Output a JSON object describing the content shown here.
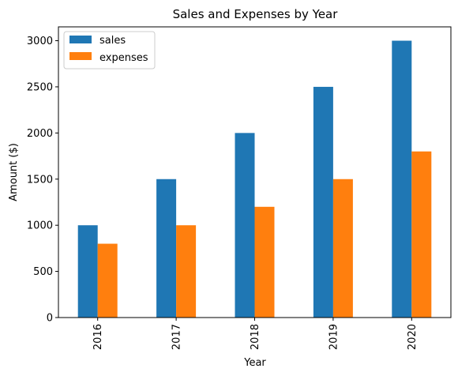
{
  "chart_data": {
    "type": "bar",
    "title": "Sales and Expenses by Year",
    "xlabel": "Year",
    "ylabel": "Amount ($)",
    "categories": [
      "2016",
      "2017",
      "2018",
      "2019",
      "2020"
    ],
    "series": [
      {
        "name": "sales",
        "color": "#1f77b4",
        "values": [
          1000,
          1500,
          2000,
          2500,
          3000
        ]
      },
      {
        "name": "expenses",
        "color": "#ff7f0e",
        "values": [
          800,
          1000,
          1200,
          1500,
          1800
        ]
      }
    ],
    "ylim": [
      0,
      3150
    ],
    "yticks": [
      0,
      500,
      1000,
      1500,
      2000,
      2500,
      3000
    ],
    "grid": false,
    "legend_position": "top-left",
    "xtick_rotation": "vertical"
  }
}
